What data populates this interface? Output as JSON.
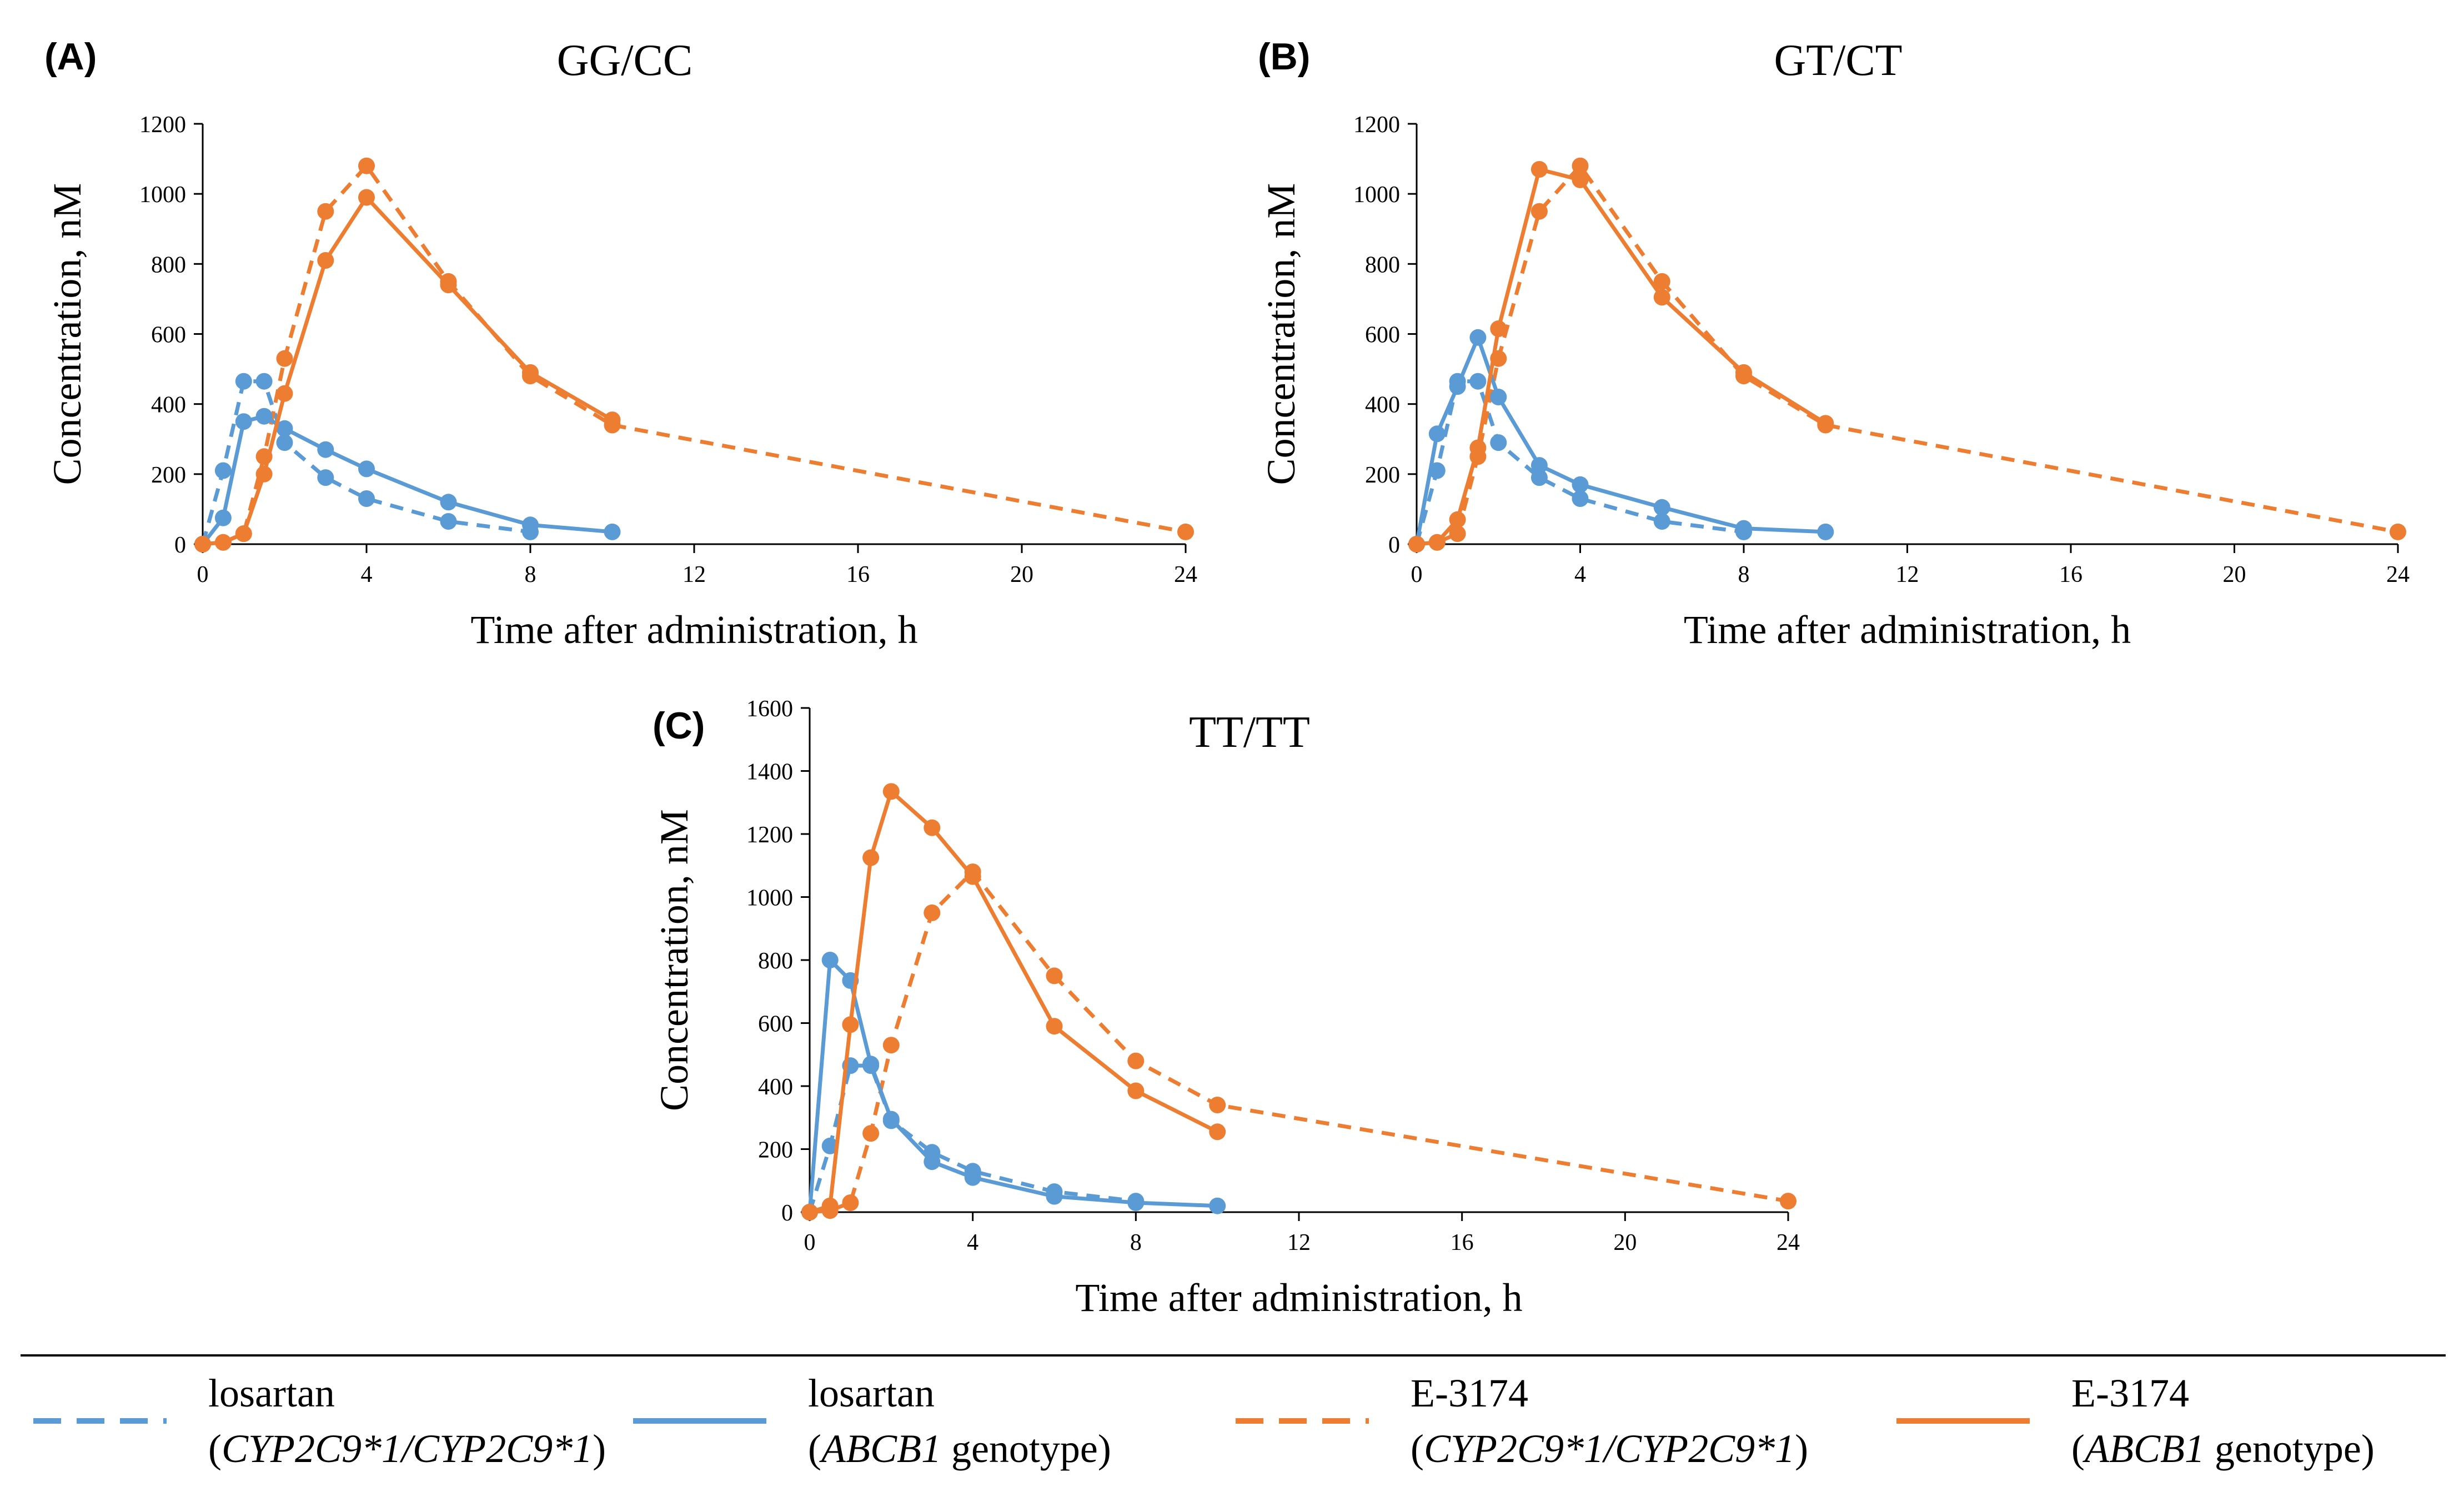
{
  "colors": {
    "losartan": "#5B9BD5",
    "e3174": "#ED7D31",
    "axis": "#000000"
  },
  "chart_data": [
    {
      "type": "line",
      "panel_label": "(A)",
      "title": "GG/CC",
      "xlabel": "Time after administration, h",
      "ylabel": "Concentration, nM",
      "xlim": [
        0,
        24
      ],
      "ylim": [
        0,
        1200
      ],
      "xticks": [
        "0",
        "4",
        "8",
        "12",
        "16",
        "20",
        "24"
      ],
      "yticks": [
        "0",
        "200",
        "400",
        "600",
        "800",
        "1000",
        "1200"
      ],
      "series": [
        {
          "name": "losartan (CYP2C9*1/CYP2C9*1)",
          "drug": "losartan",
          "style": "dashed",
          "x": [
            0,
            0.5,
            1,
            1.5,
            2,
            3,
            4,
            6,
            8
          ],
          "y": [
            0,
            210,
            465,
            465,
            290,
            190,
            130,
            65,
            35
          ]
        },
        {
          "name": "losartan (ABCB1 genotype)",
          "drug": "losartan",
          "style": "solid",
          "x": [
            0,
            0.5,
            1,
            1.5,
            2,
            3,
            4,
            6,
            8,
            10
          ],
          "y": [
            0,
            75,
            350,
            365,
            330,
            270,
            215,
            120,
            55,
            35
          ]
        },
        {
          "name": "E-3174 (CYP2C9*1/CYP2C9*1)",
          "drug": "e3174",
          "style": "dashed",
          "x": [
            0,
            0.5,
            1,
            1.5,
            2,
            3,
            4,
            6,
            8,
            10,
            24
          ],
          "y": [
            0,
            5,
            30,
            250,
            530,
            950,
            1080,
            750,
            480,
            340,
            35
          ]
        },
        {
          "name": "E-3174 (ABCB1 genotype)",
          "drug": "e3174",
          "style": "solid",
          "x": [
            0,
            0.5,
            1,
            1.5,
            2,
            3,
            4,
            6,
            8,
            10
          ],
          "y": [
            0,
            5,
            30,
            200,
            430,
            810,
            990,
            740,
            490,
            355
          ]
        }
      ]
    },
    {
      "type": "line",
      "panel_label": "(B)",
      "title": "GT/CT",
      "xlabel": "Time after administration, h",
      "ylabel": "Concentration, nM",
      "xlim": [
        0,
        24
      ],
      "ylim": [
        0,
        1200
      ],
      "xticks": [
        "0",
        "4",
        "8",
        "12",
        "16",
        "20",
        "24"
      ],
      "yticks": [
        "0",
        "200",
        "400",
        "600",
        "800",
        "1000",
        "1200"
      ],
      "series": [
        {
          "name": "losartan (CYP2C9*1/CYP2C9*1)",
          "drug": "losartan",
          "style": "dashed",
          "x": [
            0,
            0.5,
            1,
            1.5,
            2,
            3,
            4,
            6,
            8
          ],
          "y": [
            0,
            210,
            465,
            465,
            290,
            190,
            130,
            65,
            35
          ]
        },
        {
          "name": "losartan (ABCB1 genotype)",
          "drug": "losartan",
          "style": "solid",
          "x": [
            0,
            0.5,
            1,
            1.5,
            2,
            3,
            4,
            6,
            8,
            10
          ],
          "y": [
            0,
            315,
            450,
            590,
            420,
            225,
            170,
            105,
            45,
            35
          ]
        },
        {
          "name": "E-3174 (CYP2C9*1/CYP2C9*1)",
          "drug": "e3174",
          "style": "dashed",
          "x": [
            0,
            0.5,
            1,
            1.5,
            2,
            3,
            4,
            6,
            8,
            10,
            24
          ],
          "y": [
            0,
            5,
            30,
            250,
            530,
            950,
            1080,
            750,
            480,
            340,
            35
          ]
        },
        {
          "name": "E-3174 (ABCB1 genotype)",
          "drug": "e3174",
          "style": "solid",
          "x": [
            0,
            0.5,
            1,
            1.5,
            2,
            3,
            4,
            6,
            8,
            10
          ],
          "y": [
            0,
            5,
            70,
            275,
            615,
            1070,
            1040,
            705,
            490,
            345
          ]
        }
      ]
    },
    {
      "type": "line",
      "panel_label": "(C)",
      "title": "TT/TT",
      "xlabel": "Time after administration, h",
      "ylabel": "Concentration, nM",
      "xlim": [
        0,
        24
      ],
      "ylim": [
        0,
        1600
      ],
      "xticks": [
        "0",
        "4",
        "8",
        "12",
        "16",
        "20",
        "24"
      ],
      "yticks": [
        "0",
        "200",
        "400",
        "600",
        "800",
        "1000",
        "1200",
        "1400",
        "1600"
      ],
      "series": [
        {
          "name": "losartan (CYP2C9*1/CYP2C9*1)",
          "drug": "losartan",
          "style": "dashed",
          "x": [
            0,
            0.5,
            1,
            1.5,
            2,
            3,
            4,
            6,
            8
          ],
          "y": [
            0,
            210,
            465,
            465,
            290,
            190,
            130,
            65,
            35
          ]
        },
        {
          "name": "losartan (ABCB1 genotype)",
          "drug": "losartan",
          "style": "solid",
          "x": [
            0,
            0.5,
            1,
            1.5,
            2,
            3,
            4,
            6,
            8,
            10
          ],
          "y": [
            0,
            800,
            735,
            470,
            295,
            160,
            110,
            50,
            30,
            20
          ]
        },
        {
          "name": "E-3174 (CYP2C9*1/CYP2C9*1)",
          "drug": "e3174",
          "style": "dashed",
          "x": [
            0,
            0.5,
            1,
            1.5,
            2,
            3,
            4,
            6,
            8,
            10,
            24
          ],
          "y": [
            0,
            5,
            30,
            250,
            530,
            950,
            1080,
            750,
            480,
            340,
            35
          ]
        },
        {
          "name": "E-3174 (ABCB1 genotype)",
          "drug": "e3174",
          "style": "solid",
          "x": [
            0,
            0.5,
            1,
            1.5,
            2,
            3,
            4,
            6,
            8,
            10
          ],
          "y": [
            0,
            20,
            595,
            1125,
            1335,
            1220,
            1065,
            590,
            385,
            255
          ]
        }
      ]
    }
  ],
  "legend": [
    {
      "drug": "losartan",
      "style": "dashed",
      "line1": "losartan",
      "parts": [
        {
          "text": "(",
          "italic": false
        },
        {
          "text": "CYP2C9*1/CYP2C9*1",
          "italic": true
        },
        {
          "text": ")",
          "italic": false
        }
      ]
    },
    {
      "drug": "losartan",
      "style": "solid",
      "line1": "losartan",
      "parts": [
        {
          "text": "(",
          "italic": false
        },
        {
          "text": "ABCB1",
          "italic": true
        },
        {
          "text": " genotype)",
          "italic": false
        }
      ]
    },
    {
      "drug": "e3174",
      "style": "dashed",
      "line1": "E-3174",
      "parts": [
        {
          "text": "(",
          "italic": false
        },
        {
          "text": "CYP2C9*1/CYP2C9*1",
          "italic": true
        },
        {
          "text": ")",
          "italic": false
        }
      ]
    },
    {
      "drug": "e3174",
      "style": "solid",
      "line1": "E-3174",
      "parts": [
        {
          "text": "(",
          "italic": false
        },
        {
          "text": "ABCB1",
          "italic": true
        },
        {
          "text": " genotype)",
          "italic": false
        }
      ]
    }
  ]
}
